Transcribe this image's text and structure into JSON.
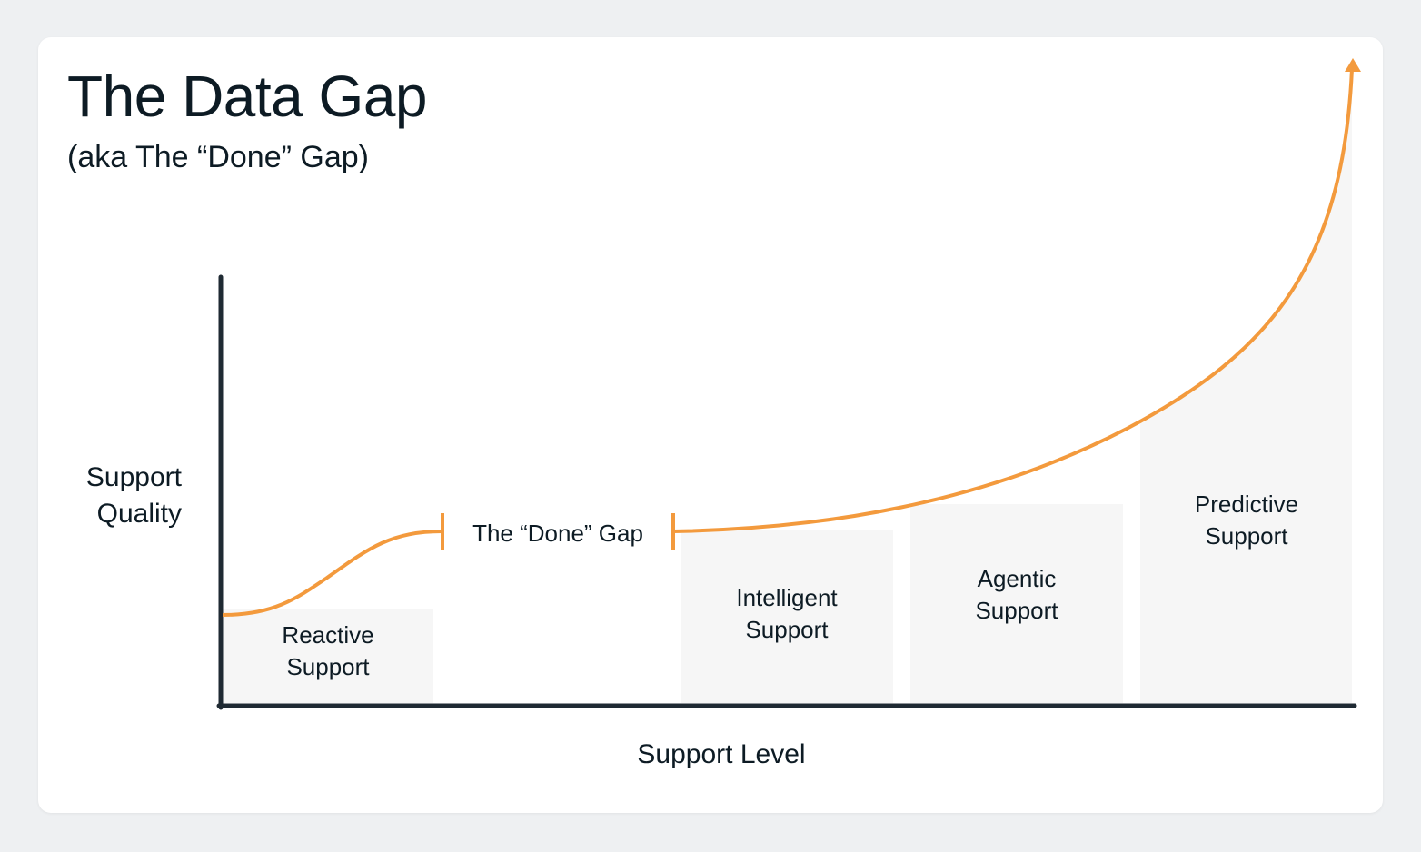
{
  "title": "The Data Gap",
  "subtitle": "(aka The “Done” Gap)",
  "y_axis_label": "Support\nQuality",
  "x_axis_label": "Support Level",
  "gap_label": "The “Done” Gap",
  "stages": [
    {
      "label": "Reactive\nSupport"
    },
    {
      "label": "Intelligent\nSupport"
    },
    {
      "label": "Agentic\nSupport"
    },
    {
      "label": "Predictive\nSupport"
    }
  ],
  "colors": {
    "curve": "#f39a3d",
    "axis": "#1f2a33",
    "stage_fill": "#f6f6f6",
    "text": "#0d1b24",
    "background": "#eef0f2"
  }
}
